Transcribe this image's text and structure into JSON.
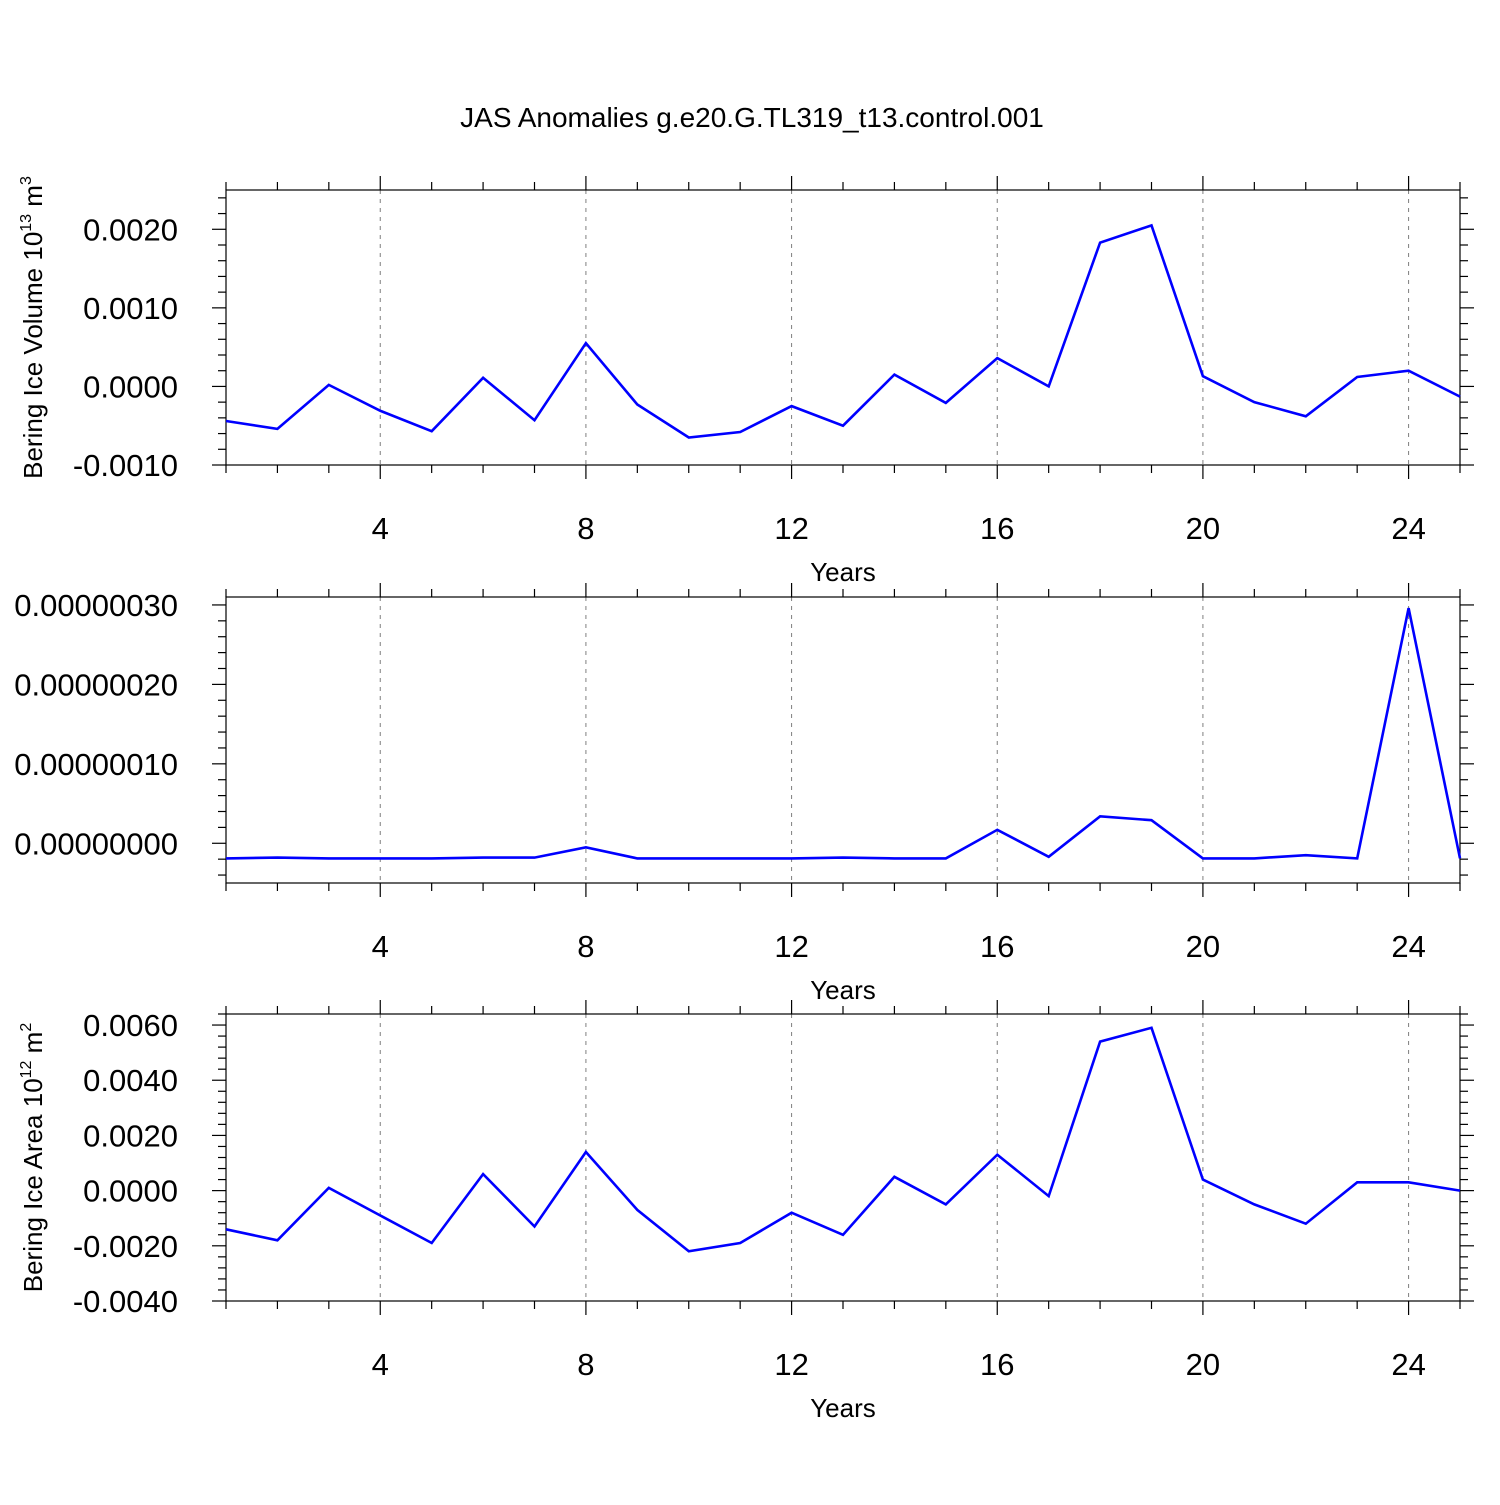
{
  "title": "JAS Anomalies g.e20.G.TL319_t13.control.001",
  "colors": {
    "line": "#0000ff",
    "axis": "#000000",
    "grid": "#7f7f7f"
  },
  "chart_data": [
    {
      "type": "line",
      "xlabel": "Years",
      "ylabel": {
        "text": "Bering Ice Volume 10",
        "sup": "13",
        "unit": " m",
        "unit_sup": "3"
      },
      "xlim": [
        1,
        25
      ],
      "ylim": [
        -0.001,
        0.0025
      ],
      "xticks": [
        4,
        8,
        12,
        16,
        20,
        24
      ],
      "xtick_labels": [
        "4",
        "8",
        "12",
        "16",
        "20",
        "24"
      ],
      "yticks": [
        -0.001,
        0.0,
        0.001,
        0.002
      ],
      "ytick_labels": [
        "-0.0010",
        "0.0000",
        "0.0010",
        "0.0020"
      ],
      "grid": "vertical dashed at major x ticks",
      "x": [
        1,
        2,
        3,
        4,
        5,
        6,
        7,
        8,
        9,
        10,
        11,
        12,
        13,
        14,
        15,
        16,
        17,
        18,
        19,
        20,
        21,
        22,
        23,
        24,
        25
      ],
      "series": [
        {
          "values": [
            -0.00044,
            -0.00054,
            2e-05,
            -0.00031,
            -0.00057,
            0.00011,
            -0.00043,
            0.00055,
            -0.00023,
            -0.00065,
            -0.00058,
            -0.00025,
            -0.0005,
            0.00015,
            -0.00021,
            0.00036,
            0.0,
            0.00183,
            0.00205,
            0.00013,
            -0.0002,
            -0.00038,
            0.00012,
            0.0002,
            -0.00013
          ]
        }
      ]
    },
    {
      "type": "line",
      "xlabel": "Years",
      "ylabel": {
        "text": "",
        "sup": "",
        "unit": "",
        "unit_sup": ""
      },
      "xlim": [
        1,
        25
      ],
      "ylim": [
        -5e-08,
        3.1e-07
      ],
      "xticks": [
        4,
        8,
        12,
        16,
        20,
        24
      ],
      "xtick_labels": [
        "4",
        "8",
        "12",
        "16",
        "20",
        "24"
      ],
      "yticks": [
        0.0,
        1e-07,
        2e-07,
        3e-07
      ],
      "ytick_labels": [
        "0.00000000",
        "0.00000010",
        "0.00000020",
        "0.00000030"
      ],
      "grid": "vertical dashed at major x ticks",
      "x": [
        1,
        2,
        3,
        4,
        5,
        6,
        7,
        8,
        9,
        10,
        11,
        12,
        13,
        14,
        15,
        16,
        17,
        18,
        19,
        20,
        21,
        22,
        23,
        24,
        25
      ],
      "series": [
        {
          "values": [
            -1.9e-08,
            -1.8e-08,
            -1.9e-08,
            -1.9e-08,
            -1.9e-08,
            -1.8e-08,
            -1.8e-08,
            -5e-09,
            -1.9e-08,
            -1.9e-08,
            -1.9e-08,
            -1.9e-08,
            -1.8e-08,
            -1.9e-08,
            -1.9e-08,
            1.7e-08,
            -1.7e-08,
            3.4e-08,
            2.9e-08,
            -1.9e-08,
            -1.9e-08,
            -1.5e-08,
            -1.9e-08,
            2.96e-07,
            -1.9e-08
          ]
        }
      ]
    },
    {
      "type": "line",
      "xlabel": "Years",
      "ylabel": {
        "text": "Bering Ice Area 10",
        "sup": "12",
        "unit": " m",
        "unit_sup": "2"
      },
      "xlim": [
        1,
        25
      ],
      "ylim": [
        -0.004,
        0.0064
      ],
      "xticks": [
        4,
        8,
        12,
        16,
        20,
        24
      ],
      "xtick_labels": [
        "4",
        "8",
        "12",
        "16",
        "20",
        "24"
      ],
      "yticks": [
        -0.004,
        -0.002,
        0.0,
        0.002,
        0.004,
        0.006
      ],
      "ytick_labels": [
        "-0.0040",
        "-0.0020",
        "0.0000",
        "0.0020",
        "0.0040",
        "0.0060"
      ],
      "grid": "vertical dashed at major x ticks",
      "x": [
        1,
        2,
        3,
        4,
        5,
        6,
        7,
        8,
        9,
        10,
        11,
        12,
        13,
        14,
        15,
        16,
        17,
        18,
        19,
        20,
        21,
        22,
        23,
        24,
        25
      ],
      "series": [
        {
          "values": [
            -0.0014,
            -0.0018,
            0.0001,
            -0.0009,
            -0.0019,
            0.0006,
            -0.0013,
            0.0014,
            -0.0007,
            -0.0022,
            -0.0019,
            -0.0008,
            -0.0016,
            0.0005,
            -0.0005,
            0.0013,
            -0.0002,
            0.0054,
            0.0059,
            0.0004,
            -0.0005,
            -0.0012,
            0.0003,
            0.0003,
            0.0
          ]
        }
      ]
    }
  ]
}
